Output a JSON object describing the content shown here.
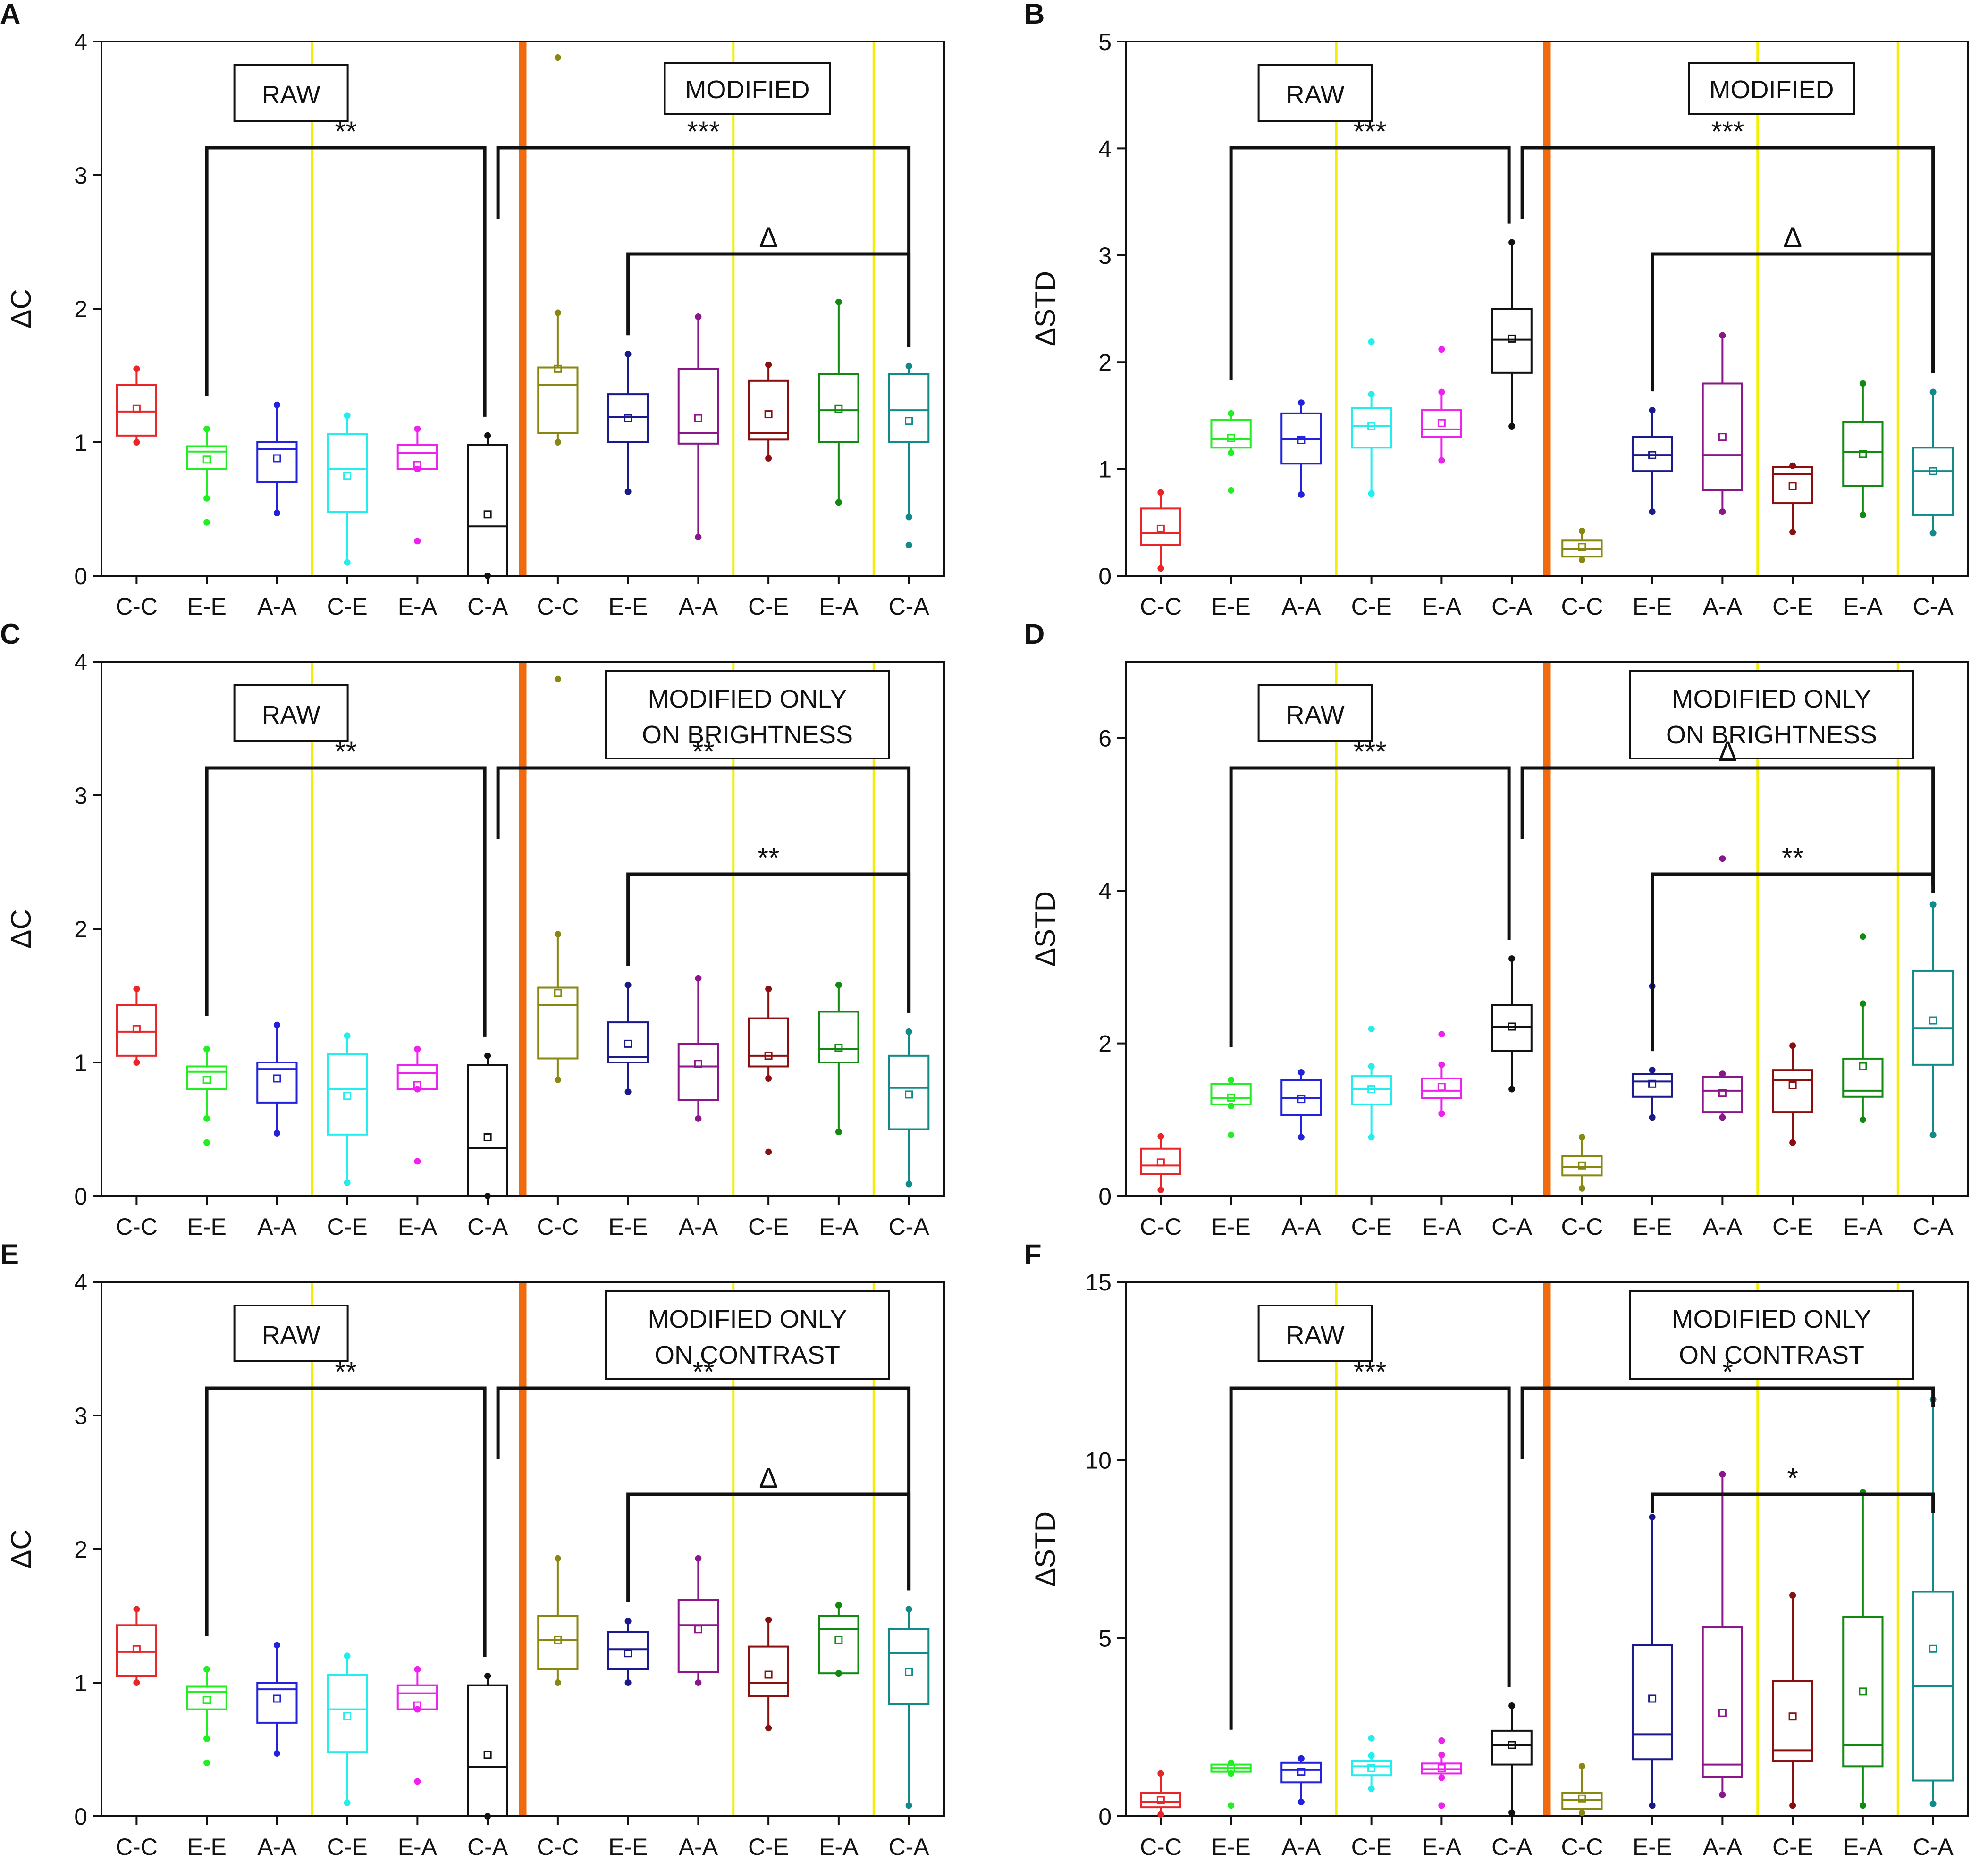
{
  "figure": {
    "categories": [
      "C-C",
      "E-E",
      "A-A",
      "C-E",
      "E-A",
      "C-A",
      "C-C",
      "E-E",
      "A-A",
      "C-E",
      "E-A",
      "C-A"
    ],
    "colors": [
      "#e8262a",
      "#22ee22",
      "#2222dd",
      "#22eeee",
      "#ee22ee",
      "#111111",
      "#888811",
      "#1a1a8a",
      "#8a168a",
      "#8a1010",
      "#128a12",
      "#128a8a"
    ]
  },
  "chart_data": [
    {
      "type": "box",
      "panel": "A",
      "ylabel": "ΔC",
      "ylim": [
        0,
        4
      ],
      "yticks": [
        0,
        1,
        2,
        3,
        4
      ],
      "titles": [
        "RAW",
        "MODIFIED"
      ],
      "brackets": [
        {
          "from": 1,
          "to": 5,
          "label": "**"
        },
        {
          "from": 5,
          "to": 11,
          "label": "***"
        },
        {
          "from": 7,
          "to": 11,
          "label": "Δ"
        }
      ],
      "boxes": [
        {
          "min": 1.0,
          "q1": 1.05,
          "median": 1.23,
          "q3": 1.43,
          "max": 1.55,
          "mean": 1.25
        },
        {
          "min": 0.58,
          "q1": 0.8,
          "median": 0.93,
          "q3": 0.97,
          "max": 1.1,
          "mean": 0.87,
          "outliers": [
            0.4
          ]
        },
        {
          "min": 0.47,
          "q1": 0.7,
          "median": 0.95,
          "q3": 1.0,
          "max": 1.28,
          "mean": 0.88
        },
        {
          "min": 0.1,
          "q1": 0.48,
          "median": 0.8,
          "q3": 1.06,
          "max": 1.2,
          "mean": 0.75
        },
        {
          "min": 0.8,
          "q1": 0.8,
          "median": 0.92,
          "q3": 0.98,
          "max": 1.1,
          "mean": 0.83,
          "outliers": [
            0.26
          ]
        },
        {
          "min": 0.0,
          "q1": 0.0,
          "median": 0.37,
          "q3": 0.98,
          "max": 1.05,
          "mean": 0.46
        },
        {
          "min": 1.0,
          "q1": 1.07,
          "median": 1.43,
          "q3": 1.56,
          "max": 1.97,
          "mean": 1.55,
          "outliers": [
            3.88
          ]
        },
        {
          "min": 0.63,
          "q1": 1.0,
          "median": 1.19,
          "q3": 1.36,
          "max": 1.66,
          "mean": 1.18
        },
        {
          "min": 0.29,
          "q1": 0.99,
          "median": 1.07,
          "q3": 1.55,
          "max": 1.94,
          "mean": 1.18
        },
        {
          "min": 0.88,
          "q1": 1.02,
          "median": 1.07,
          "q3": 1.46,
          "max": 1.58,
          "mean": 1.21
        },
        {
          "min": 0.55,
          "q1": 1.0,
          "median": 1.24,
          "q3": 1.51,
          "max": 2.05,
          "mean": 1.25
        },
        {
          "min": 0.44,
          "q1": 1.0,
          "median": 1.24,
          "q3": 1.51,
          "max": 1.57,
          "mean": 1.16,
          "outliers": [
            0.23
          ]
        }
      ]
    },
    {
      "type": "box",
      "panel": "B",
      "ylabel": "ΔSTD",
      "ylim": [
        0,
        5
      ],
      "yticks": [
        0,
        1,
        2,
        3,
        4,
        5
      ],
      "titles": [
        "RAW",
        "MODIFIED"
      ],
      "brackets": [
        {
          "from": 1,
          "to": 5,
          "label": "***"
        },
        {
          "from": 5,
          "to": 11,
          "label": "***"
        },
        {
          "from": 7,
          "to": 11,
          "label": "Δ"
        }
      ],
      "boxes": [
        {
          "min": 0.07,
          "q1": 0.29,
          "median": 0.4,
          "q3": 0.63,
          "max": 0.78,
          "mean": 0.44
        },
        {
          "min": 1.15,
          "q1": 1.2,
          "median": 1.28,
          "q3": 1.46,
          "max": 1.52,
          "mean": 1.29,
          "outliers": [
            0.8
          ]
        },
        {
          "min": 0.76,
          "q1": 1.05,
          "median": 1.28,
          "q3": 1.52,
          "max": 1.62,
          "mean": 1.27
        },
        {
          "min": 0.77,
          "q1": 1.2,
          "median": 1.4,
          "q3": 1.57,
          "max": 1.7,
          "mean": 1.4,
          "outliers": [
            2.19
          ]
        },
        {
          "min": 1.08,
          "q1": 1.3,
          "median": 1.37,
          "q3": 1.55,
          "max": 1.72,
          "mean": 1.43,
          "outliers": [
            2.12
          ]
        },
        {
          "min": 1.4,
          "q1": 1.9,
          "median": 2.21,
          "q3": 2.5,
          "max": 3.12,
          "mean": 2.22
        },
        {
          "min": 0.15,
          "q1": 0.18,
          "median": 0.25,
          "q3": 0.33,
          "max": 0.42,
          "mean": 0.27
        },
        {
          "min": 0.6,
          "q1": 0.98,
          "median": 1.13,
          "q3": 1.3,
          "max": 1.55,
          "mean": 1.13
        },
        {
          "min": 0.6,
          "q1": 0.8,
          "median": 1.13,
          "q3": 1.8,
          "max": 2.25,
          "mean": 1.3
        },
        {
          "min": 0.41,
          "q1": 0.68,
          "median": 0.95,
          "q3": 1.02,
          "max": 1.03,
          "mean": 0.84
        },
        {
          "min": 0.57,
          "q1": 0.84,
          "median": 1.16,
          "q3": 1.44,
          "max": 1.8,
          "mean": 1.14
        },
        {
          "min": 0.4,
          "q1": 0.57,
          "median": 0.98,
          "q3": 1.2,
          "max": 1.72,
          "mean": 0.98
        }
      ]
    },
    {
      "type": "box",
      "panel": "C",
      "ylabel": "ΔC",
      "ylim": [
        0,
        4
      ],
      "yticks": [
        0,
        1,
        2,
        3,
        4
      ],
      "titles": [
        "RAW",
        "MODIFIED ONLY ON BRIGHTNESS"
      ],
      "brackets": [
        {
          "from": 1,
          "to": 5,
          "label": "**"
        },
        {
          "from": 5,
          "to": 11,
          "label": "**"
        },
        {
          "from": 7,
          "to": 11,
          "label": "**"
        }
      ],
      "boxes": [
        {
          "min": 1.0,
          "q1": 1.05,
          "median": 1.23,
          "q3": 1.43,
          "max": 1.55,
          "mean": 1.25
        },
        {
          "min": 0.58,
          "q1": 0.8,
          "median": 0.93,
          "q3": 0.97,
          "max": 1.1,
          "mean": 0.87,
          "outliers": [
            0.4
          ]
        },
        {
          "min": 0.47,
          "q1": 0.7,
          "median": 0.95,
          "q3": 1.0,
          "max": 1.28,
          "mean": 0.88
        },
        {
          "min": 0.1,
          "q1": 0.46,
          "median": 0.8,
          "q3": 1.06,
          "max": 1.2,
          "mean": 0.75
        },
        {
          "min": 0.8,
          "q1": 0.8,
          "median": 0.92,
          "q3": 0.98,
          "max": 1.1,
          "mean": 0.83,
          "outliers": [
            0.26
          ]
        },
        {
          "min": 0.0,
          "q1": 0.0,
          "median": 0.36,
          "q3": 0.98,
          "max": 1.05,
          "mean": 0.44
        },
        {
          "min": 0.87,
          "q1": 1.03,
          "median": 1.43,
          "q3": 1.56,
          "max": 1.96,
          "mean": 1.52,
          "outliers": [
            3.87
          ]
        },
        {
          "min": 0.78,
          "q1": 1.0,
          "median": 1.04,
          "q3": 1.3,
          "max": 1.58,
          "mean": 1.14
        },
        {
          "min": 0.58,
          "q1": 0.72,
          "median": 0.97,
          "q3": 1.14,
          "max": 1.63,
          "mean": 0.99
        },
        {
          "min": 0.88,
          "q1": 0.97,
          "median": 1.05,
          "q3": 1.33,
          "max": 1.55,
          "mean": 1.05,
          "outliers": [
            0.33
          ]
        },
        {
          "min": 0.48,
          "q1": 1.0,
          "median": 1.1,
          "q3": 1.38,
          "max": 1.58,
          "mean": 1.11
        },
        {
          "min": 0.09,
          "q1": 0.5,
          "median": 0.81,
          "q3": 1.05,
          "max": 1.23,
          "mean": 0.76
        }
      ]
    },
    {
      "type": "box",
      "panel": "D",
      "ylabel": "ΔSTD",
      "ylim": [
        0,
        7
      ],
      "yticks": [
        0,
        2,
        4,
        6
      ],
      "titles": [
        "RAW",
        "MODIFIED ONLY ON BRIGHTNESS"
      ],
      "brackets": [
        {
          "from": 1,
          "to": 5,
          "label": "***"
        },
        {
          "from": 5,
          "to": 11,
          "label": "Δ"
        },
        {
          "from": 7,
          "to": 11,
          "label": "**"
        }
      ],
      "boxes": [
        {
          "min": 0.08,
          "q1": 0.29,
          "median": 0.4,
          "q3": 0.62,
          "max": 0.78,
          "mean": 0.44
        },
        {
          "min": 1.18,
          "q1": 1.2,
          "median": 1.28,
          "q3": 1.47,
          "max": 1.52,
          "mean": 1.29,
          "outliers": [
            0.8
          ]
        },
        {
          "min": 0.77,
          "q1": 1.06,
          "median": 1.28,
          "q3": 1.52,
          "max": 1.62,
          "mean": 1.27
        },
        {
          "min": 0.77,
          "q1": 1.2,
          "median": 1.4,
          "q3": 1.57,
          "max": 1.7,
          "mean": 1.4,
          "outliers": [
            2.19
          ]
        },
        {
          "min": 1.08,
          "q1": 1.28,
          "median": 1.38,
          "q3": 1.54,
          "max": 1.72,
          "mean": 1.43,
          "outliers": [
            2.12
          ]
        },
        {
          "min": 1.4,
          "q1": 1.9,
          "median": 2.22,
          "q3": 2.5,
          "max": 3.11,
          "mean": 2.22
        },
        {
          "min": 0.1,
          "q1": 0.27,
          "median": 0.38,
          "q3": 0.52,
          "max": 0.77,
          "mean": 0.4
        },
        {
          "min": 1.03,
          "q1": 1.3,
          "median": 1.5,
          "q3": 1.6,
          "max": 1.65,
          "mean": 1.47,
          "outliers": [
            2.75
          ]
        },
        {
          "min": 1.03,
          "q1": 1.1,
          "median": 1.38,
          "q3": 1.56,
          "max": 1.6,
          "mean": 1.35,
          "outliers": [
            4.42
          ]
        },
        {
          "min": 0.7,
          "q1": 1.1,
          "median": 1.52,
          "q3": 1.65,
          "max": 1.97,
          "mean": 1.45
        },
        {
          "min": 1.0,
          "q1": 1.3,
          "median": 1.38,
          "q3": 1.8,
          "max": 2.52,
          "mean": 1.7,
          "outliers": [
            3.4
          ]
        },
        {
          "min": 0.8,
          "q1": 1.72,
          "median": 2.2,
          "q3": 2.95,
          "max": 3.82,
          "mean": 2.3
        }
      ]
    },
    {
      "type": "box",
      "panel": "E",
      "ylabel": "ΔC",
      "ylim": [
        0,
        4
      ],
      "yticks": [
        0,
        1,
        2,
        3,
        4
      ],
      "titles": [
        "RAW",
        "MODIFIED ONLY ON CONTRAST"
      ],
      "brackets": [
        {
          "from": 1,
          "to": 5,
          "label": "**"
        },
        {
          "from": 5,
          "to": 11,
          "label": "**"
        },
        {
          "from": 7,
          "to": 11,
          "label": "Δ"
        }
      ],
      "boxes": [
        {
          "min": 1.0,
          "q1": 1.05,
          "median": 1.23,
          "q3": 1.43,
          "max": 1.55,
          "mean": 1.25
        },
        {
          "min": 0.58,
          "q1": 0.8,
          "median": 0.93,
          "q3": 0.97,
          "max": 1.1,
          "mean": 0.87,
          "outliers": [
            0.4
          ]
        },
        {
          "min": 0.47,
          "q1": 0.7,
          "median": 0.95,
          "q3": 1.0,
          "max": 1.28,
          "mean": 0.88
        },
        {
          "min": 0.1,
          "q1": 0.48,
          "median": 0.8,
          "q3": 1.06,
          "max": 1.2,
          "mean": 0.75
        },
        {
          "min": 0.8,
          "q1": 0.8,
          "median": 0.92,
          "q3": 0.98,
          "max": 1.1,
          "mean": 0.83,
          "outliers": [
            0.26
          ]
        },
        {
          "min": 0.0,
          "q1": 0.0,
          "median": 0.37,
          "q3": 0.98,
          "max": 1.05,
          "mean": 0.46
        },
        {
          "min": 1.0,
          "q1": 1.1,
          "median": 1.32,
          "q3": 1.5,
          "max": 1.93,
          "mean": 1.32
        },
        {
          "min": 1.0,
          "q1": 1.1,
          "median": 1.25,
          "q3": 1.38,
          "max": 1.46,
          "mean": 1.22
        },
        {
          "min": 1.0,
          "q1": 1.08,
          "median": 1.43,
          "q3": 1.62,
          "max": 1.93,
          "mean": 1.4
        },
        {
          "min": 0.66,
          "q1": 0.9,
          "median": 1.0,
          "q3": 1.27,
          "max": 1.47,
          "mean": 1.06
        },
        {
          "min": 1.07,
          "q1": 1.07,
          "median": 1.4,
          "q3": 1.5,
          "max": 1.58,
          "mean": 1.32
        },
        {
          "min": 0.08,
          "q1": 0.84,
          "median": 1.22,
          "q3": 1.4,
          "max": 1.55,
          "mean": 1.08
        }
      ]
    },
    {
      "type": "box",
      "panel": "F",
      "ylabel": "ΔSTD",
      "ylim": [
        0,
        15
      ],
      "yticks": [
        0,
        5,
        10,
        15
      ],
      "titles": [
        "RAW",
        "MODIFIED ONLY ON CONTRAST"
      ],
      "brackets": [
        {
          "from": 1,
          "to": 5,
          "label": "***"
        },
        {
          "from": 5,
          "to": 11,
          "label": "*"
        },
        {
          "from": 7,
          "to": 11,
          "label": "*"
        }
      ],
      "boxes": [
        {
          "min": 0.05,
          "q1": 0.25,
          "median": 0.4,
          "q3": 0.65,
          "max": 1.2,
          "mean": 0.45
        },
        {
          "min": 1.2,
          "q1": 1.25,
          "median": 1.35,
          "q3": 1.45,
          "max": 1.5,
          "mean": 1.35,
          "outliers": [
            0.3
          ]
        },
        {
          "min": 0.4,
          "q1": 0.95,
          "median": 1.3,
          "q3": 1.5,
          "max": 1.62,
          "mean": 1.25
        },
        {
          "min": 0.77,
          "q1": 1.15,
          "median": 1.4,
          "q3": 1.55,
          "max": 1.7,
          "mean": 1.35,
          "outliers": [
            2.19
          ]
        },
        {
          "min": 1.08,
          "q1": 1.2,
          "median": 1.32,
          "q3": 1.48,
          "max": 1.72,
          "mean": 1.35,
          "outliers": [
            2.12,
            0.3
          ]
        },
        {
          "min": 0.1,
          "q1": 1.45,
          "median": 2.0,
          "q3": 2.4,
          "max": 3.1,
          "mean": 2.0
        },
        {
          "min": 0.1,
          "q1": 0.2,
          "median": 0.45,
          "q3": 0.65,
          "max": 1.4,
          "mean": 0.5
        },
        {
          "min": 0.3,
          "q1": 1.6,
          "median": 2.3,
          "q3": 4.8,
          "max": 8.4,
          "mean": 3.3
        },
        {
          "min": 0.6,
          "q1": 1.1,
          "median": 1.45,
          "q3": 5.3,
          "max": 9.6,
          "mean": 2.9
        },
        {
          "min": 0.3,
          "q1": 1.55,
          "median": 1.85,
          "q3": 3.8,
          "max": 6.2,
          "mean": 2.8
        },
        {
          "min": 0.3,
          "q1": 1.4,
          "median": 2.0,
          "q3": 5.6,
          "max": 9.1,
          "mean": 3.5
        },
        {
          "min": 0.35,
          "q1": 1.0,
          "median": 3.65,
          "q3": 6.3,
          "max": 11.7,
          "mean": 4.7
        }
      ]
    }
  ]
}
